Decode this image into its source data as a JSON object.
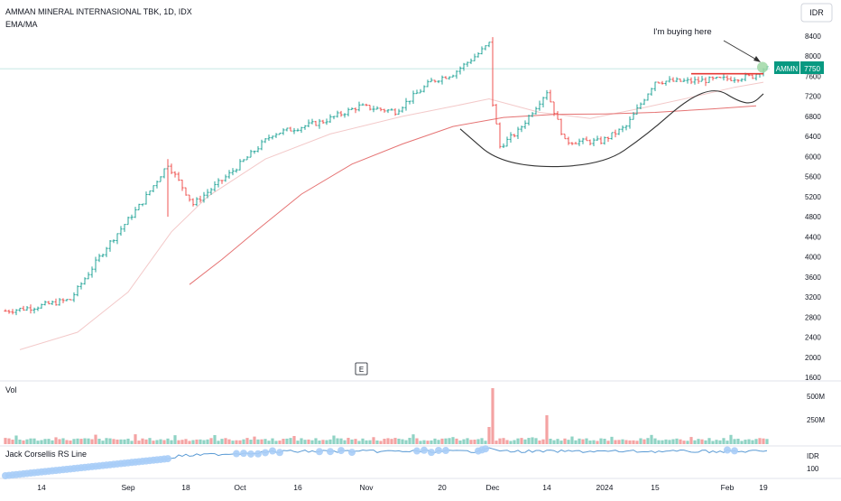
{
  "header": {
    "title": "AMMAN MINERAL INTERNASIONAL TBK, 1D, IDX",
    "indicator": "EMA/MA",
    "currency_button": "IDR"
  },
  "annotation": {
    "text": "I'm buying here"
  },
  "price_tag": {
    "symbol": "AMMN",
    "value": "7750"
  },
  "volume_pane": {
    "label": "Vol",
    "ticks": [
      "500M",
      "250M"
    ]
  },
  "rs_pane": {
    "label": "Jack Corsellis RS Line",
    "currency": "IDR",
    "tick": "100"
  },
  "colors": {
    "up": "#26a69a",
    "down": "#ef5350",
    "vol_up": "#8fd3c4",
    "vol_down": "#f4a3a3",
    "ema": "#f3c9c9",
    "ma": "#e57373",
    "rs_line": "#5b9bd5",
    "rs_dot": "#a9cdf7",
    "resistance": "#e53935",
    "cup": "#333333",
    "tag": "#089981",
    "buy_dot": "#9fd8a6"
  },
  "chart_data": {
    "type": "candlestick",
    "title": "AMMAN MINERAL INTERNASIONAL TBK, 1D, IDX",
    "y_axis": {
      "ticks": [
        8400,
        8000,
        7600,
        7200,
        6800,
        6400,
        6000,
        5600,
        5200,
        4800,
        4400,
        4000,
        3600,
        3200,
        2800,
        2400,
        2000,
        1600
      ],
      "range": [
        1560,
        8900
      ]
    },
    "x_axis": {
      "labels": [
        "14",
        "Sep",
        "18",
        "Oct",
        "16",
        "Nov",
        "20",
        "Dec",
        "14",
        "2024",
        "15",
        "Feb",
        "19"
      ],
      "label_bar_index": [
        10,
        34,
        50,
        65,
        81,
        100,
        121,
        135,
        150,
        166,
        180,
        200,
        210
      ],
      "bar_count": 212
    },
    "path_anchors": [
      [
        0,
        2920
      ],
      [
        8,
        3000
      ],
      [
        18,
        3150
      ],
      [
        28,
        4200
      ],
      [
        38,
        5100
      ],
      [
        45,
        5850
      ],
      [
        52,
        5050
      ],
      [
        62,
        5650
      ],
      [
        74,
        6450
      ],
      [
        88,
        6700
      ],
      [
        98,
        7000
      ],
      [
        108,
        6900
      ],
      [
        118,
        7500
      ],
      [
        124,
        7650
      ],
      [
        131,
        8050
      ],
      [
        134,
        8250
      ],
      [
        135,
        7050
      ],
      [
        137,
        6200
      ],
      [
        142,
        6500
      ],
      [
        150,
        7300
      ],
      [
        155,
        6300
      ],
      [
        165,
        6300
      ],
      [
        172,
        6600
      ],
      [
        180,
        7500
      ],
      [
        190,
        7500
      ],
      [
        200,
        7550
      ],
      [
        207,
        7600
      ],
      [
        210,
        7750
      ]
    ],
    "ema_line": [
      [
        4,
        2150
      ],
      [
        20,
        2500
      ],
      [
        34,
        3300
      ],
      [
        46,
        4500
      ],
      [
        56,
        5200
      ],
      [
        72,
        5950
      ],
      [
        90,
        6450
      ],
      [
        110,
        6800
      ],
      [
        124,
        7000
      ],
      [
        134,
        7150
      ],
      [
        148,
        6880
      ],
      [
        162,
        6760
      ],
      [
        176,
        6960
      ],
      [
        190,
        7180
      ],
      [
        202,
        7380
      ],
      [
        210,
        7480
      ]
    ],
    "ma_line": [
      [
        51,
        3450
      ],
      [
        60,
        3950
      ],
      [
        70,
        4550
      ],
      [
        82,
        5250
      ],
      [
        96,
        5850
      ],
      [
        110,
        6250
      ],
      [
        124,
        6600
      ],
      [
        138,
        6780
      ],
      [
        152,
        6840
      ],
      [
        166,
        6850
      ],
      [
        180,
        6880
      ],
      [
        196,
        6950
      ],
      [
        208,
        7010
      ]
    ],
    "resistance_line": {
      "from_bar": 190,
      "to_bar": 210,
      "price": 7650
    },
    "cup_pattern": [
      [
        126,
        6550
      ],
      [
        138,
        5800
      ],
      [
        165,
        5800
      ],
      [
        178,
        6450
      ],
      [
        189,
        7150
      ],
      [
        197,
        7370
      ],
      [
        203,
        7100
      ],
      [
        207,
        7050
      ],
      [
        210,
        7250
      ]
    ],
    "volume": {
      "ticks": [
        500,
        250
      ],
      "unit": "M",
      "spikes": {
        "135": 620,
        "134": 190,
        "150": 320
      }
    },
    "rs_line": {
      "tick": 100
    }
  }
}
